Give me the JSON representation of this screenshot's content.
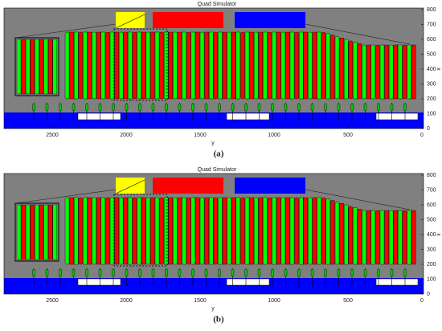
{
  "panels": [
    {
      "title": "Quad Simulator",
      "x_axis_label": "y",
      "y_axis_label": "x",
      "x_ticks": [
        2500,
        2000,
        1500,
        1000,
        500,
        0
      ],
      "y_ticks": [
        0,
        100,
        200,
        300,
        400,
        500,
        600,
        700,
        800
      ],
      "caption": "(a)"
    },
    {
      "title": "Quad Simulator",
      "x_axis_label": "y",
      "y_axis_label": "x",
      "x_ticks": [
        2500,
        2000,
        1500,
        1000,
        500,
        0
      ],
      "y_ticks": [
        0,
        100,
        200,
        300,
        400,
        500,
        600,
        700,
        800
      ],
      "caption": "(b)"
    }
  ]
}
